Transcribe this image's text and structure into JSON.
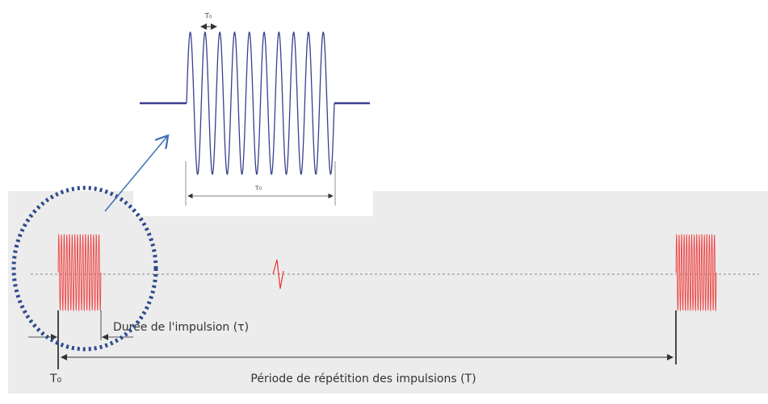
{
  "inset": {
    "period_label": "T₀",
    "duration_label": "τ₀"
  },
  "main": {
    "duration_label": "Durée de l'impulsion (τ)",
    "start_label": "T₀",
    "period_label": "Période de répétition des impulsions (T)"
  }
}
